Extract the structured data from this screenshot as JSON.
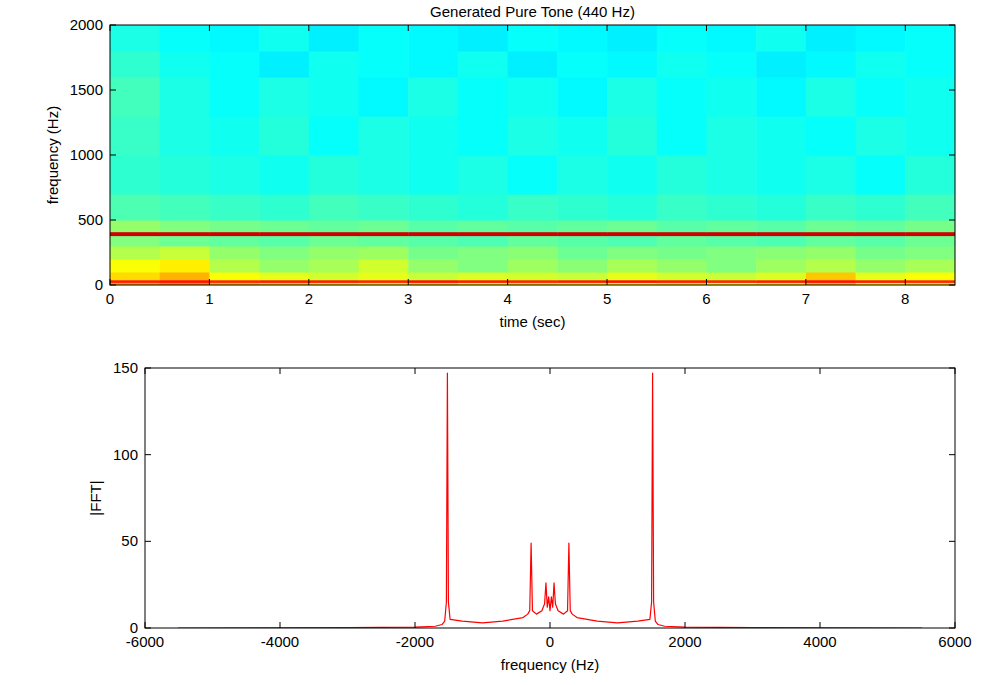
{
  "chart_data": [
    {
      "type": "heatmap",
      "title": "Generated Pure Tone (440 Hz)",
      "x_label": "time (sec)",
      "y_label": "frequency (Hz)",
      "xlim": [
        0,
        8.5
      ],
      "ylim": [
        0,
        2000
      ],
      "xticks": [
        0,
        1,
        2,
        3,
        4,
        5,
        6,
        7,
        8
      ],
      "yticks": [
        0,
        500,
        1000,
        1500,
        2000
      ],
      "clim": [
        0,
        100
      ],
      "x_edges": [
        0,
        0.5,
        1,
        1.5,
        2,
        2.5,
        3,
        3.5,
        4,
        4.5,
        5,
        5.5,
        6,
        6.5,
        7,
        7.5,
        8,
        8.5
      ],
      "y_edges": [
        0,
        20,
        40,
        100,
        200,
        300,
        380,
        410,
        500,
        700,
        1000,
        1300,
        1600,
        1800,
        2000
      ],
      "cells": [
        [
          72,
          75,
          70,
          68,
          66,
          65,
          67,
          64,
          66,
          65,
          64,
          66,
          63,
          65,
          70,
          64,
          66
        ],
        [
          85,
          86,
          84,
          85,
          85,
          84,
          86,
          85,
          84,
          85,
          86,
          85,
          84,
          85,
          86,
          85,
          84
        ],
        [
          66,
          70,
          62,
          60,
          58,
          60,
          57,
          59,
          58,
          57,
          60,
          58,
          57,
          59,
          68,
          60,
          62
        ],
        [
          62,
          64,
          55,
          52,
          54,
          58,
          52,
          50,
          53,
          51,
          54,
          52,
          50,
          53,
          55,
          52,
          54
        ],
        [
          55,
          57,
          52,
          50,
          52,
          53,
          49,
          50,
          51,
          48,
          50,
          49,
          50,
          51,
          52,
          49,
          50
        ],
        [
          50,
          48,
          47,
          46,
          48,
          47,
          46,
          45,
          47,
          46,
          45,
          47,
          46,
          45,
          47,
          46,
          48
        ],
        [
          92,
          92,
          92,
          92,
          92,
          92,
          92,
          92,
          92,
          92,
          92,
          92,
          92,
          92,
          92,
          92,
          92
        ],
        [
          52,
          50,
          49,
          48,
          47,
          48,
          46,
          47,
          46,
          47,
          48,
          46,
          47,
          46,
          48,
          47,
          49
        ],
        [
          45,
          44,
          43,
          42,
          44,
          43,
          42,
          41,
          43,
          42,
          41,
          43,
          42,
          41,
          43,
          42,
          44
        ],
        [
          42,
          41,
          40,
          39,
          41,
          40,
          39,
          40,
          38,
          40,
          39,
          41,
          40,
          39,
          40,
          38,
          41
        ],
        [
          43,
          40,
          39,
          41,
          38,
          40,
          39,
          38,
          40,
          39,
          41,
          38,
          40,
          39,
          38,
          40,
          39
        ],
        [
          44,
          40,
          38,
          40,
          39,
          37,
          40,
          38,
          39,
          37,
          40,
          38,
          39,
          37,
          40,
          38,
          39
        ],
        [
          42,
          39,
          38,
          36,
          39,
          38,
          37,
          39,
          36,
          38,
          37,
          39,
          38,
          36,
          37,
          39,
          38
        ],
        [
          40,
          38,
          37,
          39,
          36,
          38,
          37,
          36,
          38,
          37,
          36,
          38,
          37,
          39,
          36,
          37,
          38
        ]
      ]
    },
    {
      "type": "line",
      "x_label": "frequency (Hz)",
      "y_label": "|FFT|",
      "xlim": [
        -6000,
        6000
      ],
      "ylim": [
        0,
        150
      ],
      "xticks": [
        -6000,
        -4000,
        -2000,
        0,
        2000,
        4000,
        6000
      ],
      "yticks": [
        0,
        50,
        100,
        150
      ],
      "color": "#ff0000",
      "x": [
        -5512,
        -3000,
        -2000,
        -1700,
        -1600,
        -1560,
        -1535,
        -1520,
        -1505,
        -1480,
        -1300,
        -1000,
        -700,
        -400,
        -330,
        -300,
        -280,
        -260,
        -200,
        -120,
        -80,
        -60,
        -40,
        -20,
        0,
        20,
        40,
        60,
        80,
        120,
        200,
        260,
        280,
        300,
        330,
        400,
        700,
        1000,
        1300,
        1480,
        1505,
        1520,
        1535,
        1560,
        1600,
        1700,
        2000,
        3000,
        5512
      ],
      "values": [
        0,
        0.2,
        0.5,
        1,
        2,
        4,
        15,
        147,
        15,
        5,
        4,
        3,
        4,
        6,
        8,
        10,
        49,
        10,
        8,
        10,
        14,
        26,
        12,
        18,
        10,
        18,
        12,
        26,
        14,
        10,
        8,
        10,
        49,
        10,
        8,
        6,
        4,
        3,
        4,
        5,
        15,
        147,
        15,
        4,
        2,
        1,
        0.5,
        0.2,
        0
      ]
    }
  ]
}
